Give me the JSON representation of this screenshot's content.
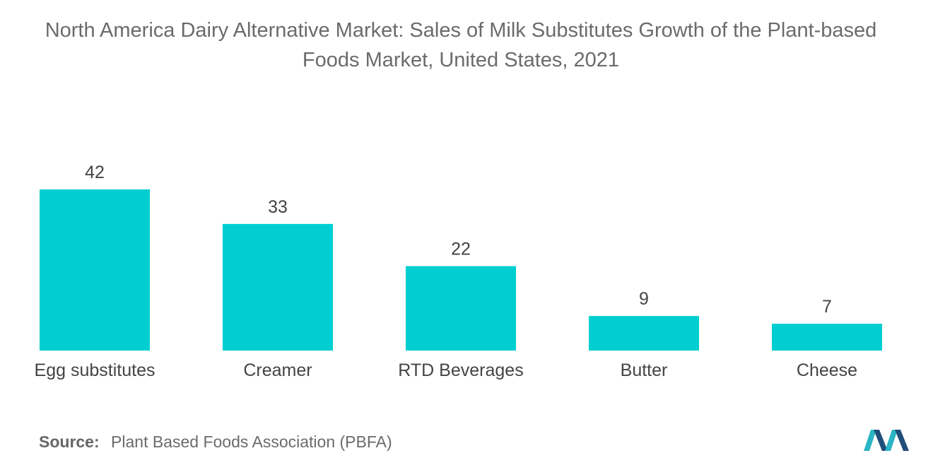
{
  "title": {
    "line1": "North America Dairy Alternative Market: Sales of Milk Substitutes Growth of the Plant-based",
    "line2": "Foods Market, United States, 2021"
  },
  "source": {
    "label": "Source:",
    "text": "Plant Based Foods Association (PBFA)"
  },
  "colors": {
    "bar": "#00CED1",
    "logo_dark": "#1F4E79",
    "logo_light": "#2BB5C5"
  },
  "chart_data": {
    "type": "bar",
    "title": "North America Dairy Alternative Market: Sales of Milk Substitutes Growth of the Plant-based Foods Market, United States, 2021",
    "categories": [
      "Egg substitutes",
      "Creamer",
      "RTD Beverages",
      "Butter",
      "Cheese"
    ],
    "values": [
      42,
      33,
      22,
      9,
      7
    ],
    "data_labels": [
      "42",
      "33",
      "22",
      "9",
      "7"
    ],
    "xlabel": "",
    "ylabel": "",
    "ylim": [
      0,
      42
    ],
    "grid": false,
    "legend": "none"
  }
}
